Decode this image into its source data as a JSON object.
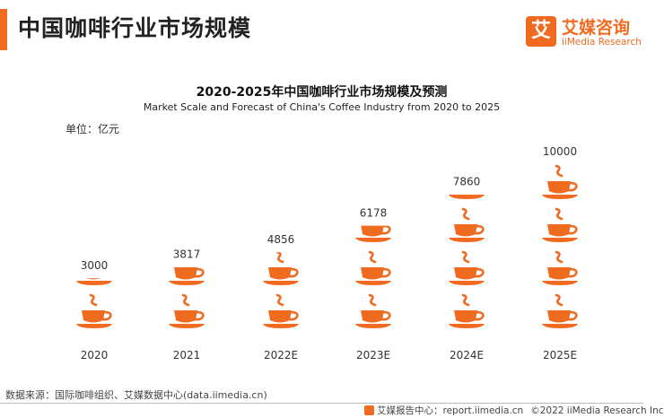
{
  "header": {
    "title": "中国咖啡行业市场规模",
    "logo_mark": "艾",
    "logo_cn": "艾媒咨询",
    "logo_en": "iiMedia Research"
  },
  "chart_data": {
    "type": "bar",
    "title": "2020-2025年中国咖啡行业市场规模及预测",
    "subtitle": "Market Scale and Forecast of China's Coffee Industry from 2020 to 2025",
    "unit_label": "单位：亿元",
    "categories": [
      "2020",
      "2021",
      "2022E",
      "2023E",
      "2024E",
      "2025E"
    ],
    "values": [
      3000,
      3817,
      4856,
      6178,
      7860,
      10000
    ],
    "value_labels": [
      "3000",
      "3817",
      "4856",
      "6178",
      "7860",
      "10000"
    ],
    "ylim": [
      0,
      10000
    ],
    "pictograph_unit": 2500,
    "icon": "coffee-cup-icon",
    "color": "#f06a1f"
  },
  "footer": {
    "source": "数据来源：国际咖啡组织、艾媒数据中心(data.iimedia.cn)",
    "report_center": "艾媒报告中心：report.iimedia.cn",
    "copyright": "©2022  iiMedia Research  Inc"
  }
}
